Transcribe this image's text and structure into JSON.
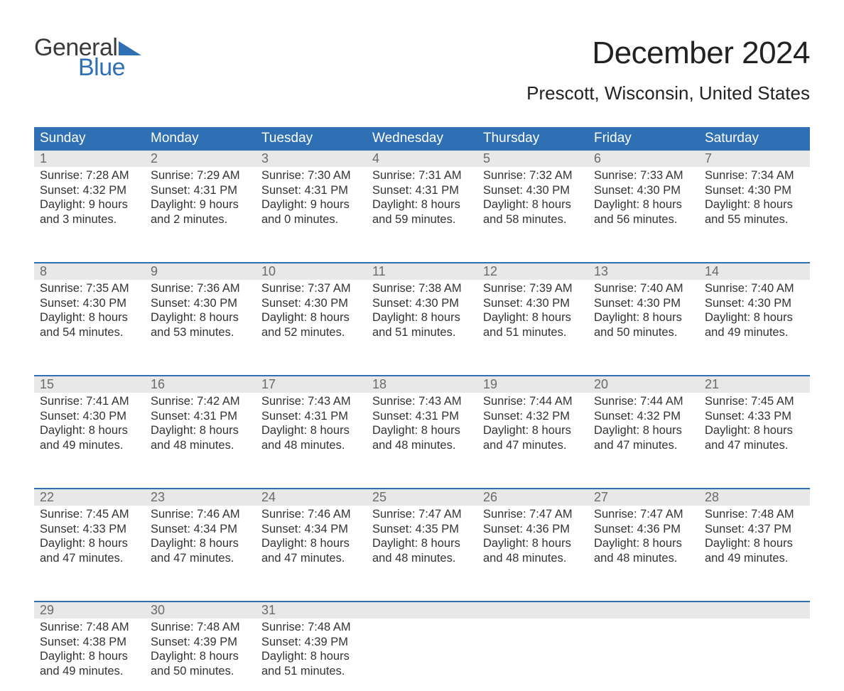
{
  "logo": {
    "text1": "General",
    "text2": "Blue",
    "flag_color": "#2f6fb3",
    "text1_color": "#3a3a3a"
  },
  "title": "December 2024",
  "location": "Prescott, Wisconsin, United States",
  "colors": {
    "header_bg": "#2f6fb3",
    "header_text": "#ffffff",
    "daynum_bg": "#e8e8e8",
    "daynum_text": "#6a6a6a",
    "body_text": "#333333",
    "rule": "#2f6fb3",
    "page_bg": "#ffffff"
  },
  "typography": {
    "title_fontsize": 44,
    "location_fontsize": 26,
    "th_fontsize": 19,
    "daynum_fontsize": 18,
    "cell_fontsize": 16.5
  },
  "columns": [
    "Sunday",
    "Monday",
    "Tuesday",
    "Wednesday",
    "Thursday",
    "Friday",
    "Saturday"
  ],
  "weeks": [
    [
      {
        "n": "1",
        "sr": "Sunrise: 7:28 AM",
        "ss": "Sunset: 4:32 PM",
        "d1": "Daylight: 9 hours",
        "d2": "and 3 minutes."
      },
      {
        "n": "2",
        "sr": "Sunrise: 7:29 AM",
        "ss": "Sunset: 4:31 PM",
        "d1": "Daylight: 9 hours",
        "d2": "and 2 minutes."
      },
      {
        "n": "3",
        "sr": "Sunrise: 7:30 AM",
        "ss": "Sunset: 4:31 PM",
        "d1": "Daylight: 9 hours",
        "d2": "and 0 minutes."
      },
      {
        "n": "4",
        "sr": "Sunrise: 7:31 AM",
        "ss": "Sunset: 4:31 PM",
        "d1": "Daylight: 8 hours",
        "d2": "and 59 minutes."
      },
      {
        "n": "5",
        "sr": "Sunrise: 7:32 AM",
        "ss": "Sunset: 4:30 PM",
        "d1": "Daylight: 8 hours",
        "d2": "and 58 minutes."
      },
      {
        "n": "6",
        "sr": "Sunrise: 7:33 AM",
        "ss": "Sunset: 4:30 PM",
        "d1": "Daylight: 8 hours",
        "d2": "and 56 minutes."
      },
      {
        "n": "7",
        "sr": "Sunrise: 7:34 AM",
        "ss": "Sunset: 4:30 PM",
        "d1": "Daylight: 8 hours",
        "d2": "and 55 minutes."
      }
    ],
    [
      {
        "n": "8",
        "sr": "Sunrise: 7:35 AM",
        "ss": "Sunset: 4:30 PM",
        "d1": "Daylight: 8 hours",
        "d2": "and 54 minutes."
      },
      {
        "n": "9",
        "sr": "Sunrise: 7:36 AM",
        "ss": "Sunset: 4:30 PM",
        "d1": "Daylight: 8 hours",
        "d2": "and 53 minutes."
      },
      {
        "n": "10",
        "sr": "Sunrise: 7:37 AM",
        "ss": "Sunset: 4:30 PM",
        "d1": "Daylight: 8 hours",
        "d2": "and 52 minutes."
      },
      {
        "n": "11",
        "sr": "Sunrise: 7:38 AM",
        "ss": "Sunset: 4:30 PM",
        "d1": "Daylight: 8 hours",
        "d2": "and 51 minutes."
      },
      {
        "n": "12",
        "sr": "Sunrise: 7:39 AM",
        "ss": "Sunset: 4:30 PM",
        "d1": "Daylight: 8 hours",
        "d2": "and 51 minutes."
      },
      {
        "n": "13",
        "sr": "Sunrise: 7:40 AM",
        "ss": "Sunset: 4:30 PM",
        "d1": "Daylight: 8 hours",
        "d2": "and 50 minutes."
      },
      {
        "n": "14",
        "sr": "Sunrise: 7:40 AM",
        "ss": "Sunset: 4:30 PM",
        "d1": "Daylight: 8 hours",
        "d2": "and 49 minutes."
      }
    ],
    [
      {
        "n": "15",
        "sr": "Sunrise: 7:41 AM",
        "ss": "Sunset: 4:30 PM",
        "d1": "Daylight: 8 hours",
        "d2": "and 49 minutes."
      },
      {
        "n": "16",
        "sr": "Sunrise: 7:42 AM",
        "ss": "Sunset: 4:31 PM",
        "d1": "Daylight: 8 hours",
        "d2": "and 48 minutes."
      },
      {
        "n": "17",
        "sr": "Sunrise: 7:43 AM",
        "ss": "Sunset: 4:31 PM",
        "d1": "Daylight: 8 hours",
        "d2": "and 48 minutes."
      },
      {
        "n": "18",
        "sr": "Sunrise: 7:43 AM",
        "ss": "Sunset: 4:31 PM",
        "d1": "Daylight: 8 hours",
        "d2": "and 48 minutes."
      },
      {
        "n": "19",
        "sr": "Sunrise: 7:44 AM",
        "ss": "Sunset: 4:32 PM",
        "d1": "Daylight: 8 hours",
        "d2": "and 47 minutes."
      },
      {
        "n": "20",
        "sr": "Sunrise: 7:44 AM",
        "ss": "Sunset: 4:32 PM",
        "d1": "Daylight: 8 hours",
        "d2": "and 47 minutes."
      },
      {
        "n": "21",
        "sr": "Sunrise: 7:45 AM",
        "ss": "Sunset: 4:33 PM",
        "d1": "Daylight: 8 hours",
        "d2": "and 47 minutes."
      }
    ],
    [
      {
        "n": "22",
        "sr": "Sunrise: 7:45 AM",
        "ss": "Sunset: 4:33 PM",
        "d1": "Daylight: 8 hours",
        "d2": "and 47 minutes."
      },
      {
        "n": "23",
        "sr": "Sunrise: 7:46 AM",
        "ss": "Sunset: 4:34 PM",
        "d1": "Daylight: 8 hours",
        "d2": "and 47 minutes."
      },
      {
        "n": "24",
        "sr": "Sunrise: 7:46 AM",
        "ss": "Sunset: 4:34 PM",
        "d1": "Daylight: 8 hours",
        "d2": "and 47 minutes."
      },
      {
        "n": "25",
        "sr": "Sunrise: 7:47 AM",
        "ss": "Sunset: 4:35 PM",
        "d1": "Daylight: 8 hours",
        "d2": "and 48 minutes."
      },
      {
        "n": "26",
        "sr": "Sunrise: 7:47 AM",
        "ss": "Sunset: 4:36 PM",
        "d1": "Daylight: 8 hours",
        "d2": "and 48 minutes."
      },
      {
        "n": "27",
        "sr": "Sunrise: 7:47 AM",
        "ss": "Sunset: 4:36 PM",
        "d1": "Daylight: 8 hours",
        "d2": "and 48 minutes."
      },
      {
        "n": "28",
        "sr": "Sunrise: 7:48 AM",
        "ss": "Sunset: 4:37 PM",
        "d1": "Daylight: 8 hours",
        "d2": "and 49 minutes."
      }
    ],
    [
      {
        "n": "29",
        "sr": "Sunrise: 7:48 AM",
        "ss": "Sunset: 4:38 PM",
        "d1": "Daylight: 8 hours",
        "d2": "and 49 minutes."
      },
      {
        "n": "30",
        "sr": "Sunrise: 7:48 AM",
        "ss": "Sunset: 4:39 PM",
        "d1": "Daylight: 8 hours",
        "d2": "and 50 minutes."
      },
      {
        "n": "31",
        "sr": "Sunrise: 7:48 AM",
        "ss": "Sunset: 4:39 PM",
        "d1": "Daylight: 8 hours",
        "d2": "and 51 minutes."
      },
      {
        "n": "",
        "sr": "",
        "ss": "",
        "d1": "",
        "d2": ""
      },
      {
        "n": "",
        "sr": "",
        "ss": "",
        "d1": "",
        "d2": ""
      },
      {
        "n": "",
        "sr": "",
        "ss": "",
        "d1": "",
        "d2": ""
      },
      {
        "n": "",
        "sr": "",
        "ss": "",
        "d1": "",
        "d2": ""
      }
    ]
  ]
}
